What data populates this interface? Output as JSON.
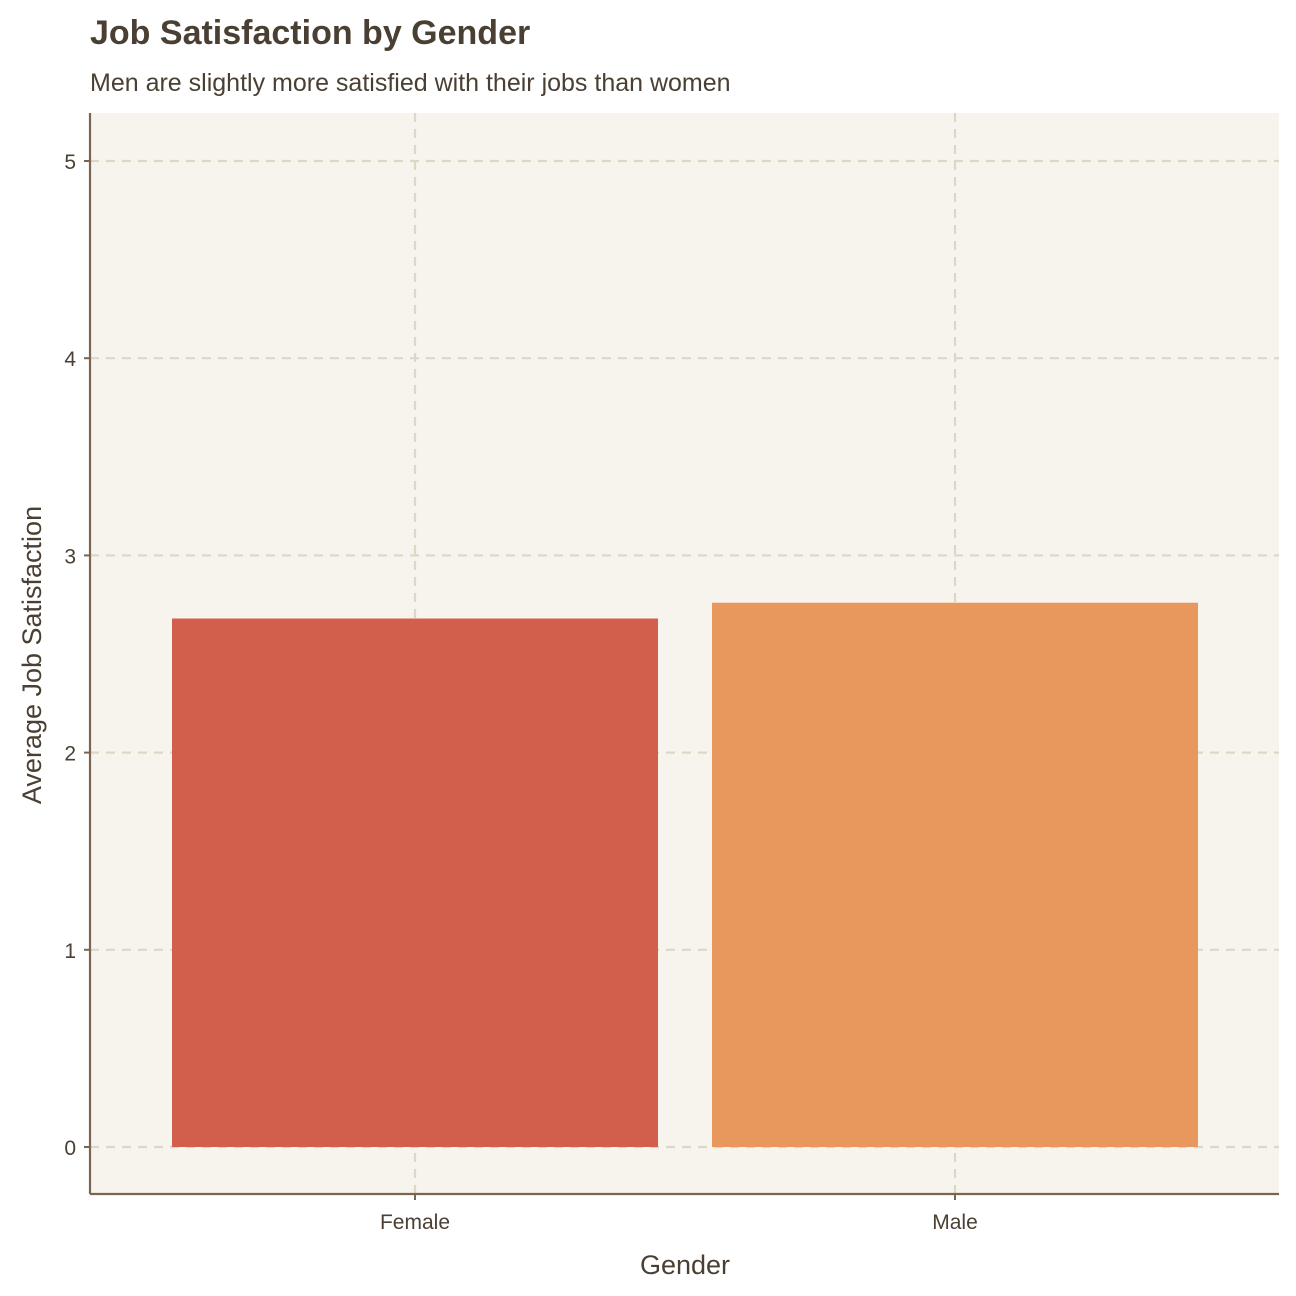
{
  "chart_data": {
    "type": "bar",
    "title": "Job Satisfaction by Gender",
    "subtitle": "Men are slightly more satisfied with their jobs than women",
    "xlabel": "Gender",
    "ylabel": "Average Job Satisfaction",
    "categories": [
      "Female",
      "Male"
    ],
    "values": [
      2.68,
      2.76
    ],
    "bar_colors": [
      "#d15f4c",
      "#e8985d"
    ],
    "ylim": [
      0,
      5
    ],
    "yticks": [
      0,
      1,
      2,
      3,
      4,
      5
    ],
    "grid": true,
    "grid_color": "#ddd8c6",
    "panel_background": "#f7f4ee",
    "axis_color": "#7a6650",
    "text_color": "#4a3f33",
    "legend": "none"
  }
}
